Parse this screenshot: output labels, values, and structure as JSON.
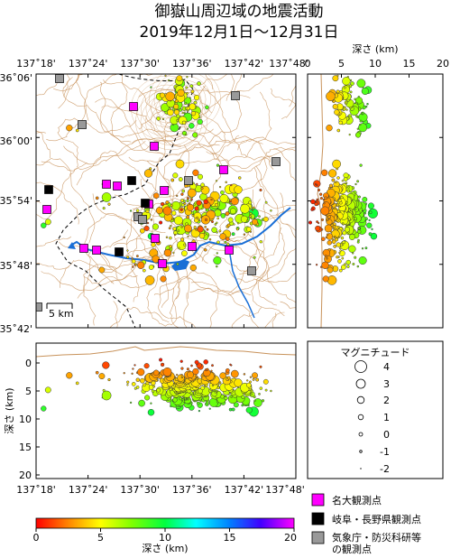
{
  "title": {
    "line1": "御嶽山周辺域の地震活動",
    "line2": "2019年12月1日～12月31日"
  },
  "map": {
    "lon_ticks": [
      "137˚18'",
      "137˚24'",
      "137˚30'",
      "137˚36'",
      "137˚42'",
      "137˚48'"
    ],
    "lat_ticks": [
      "36˚06'",
      "36˚00'",
      "35˚54'",
      "35˚48'",
      "35˚42'"
    ],
    "scale_label": "5 km"
  },
  "depth_section_right": {
    "title": "深さ (km)",
    "ticks": [
      "0",
      "5",
      "10",
      "15",
      "20"
    ]
  },
  "depth_section_bottom": {
    "ylabel": "深さ (km)",
    "y_ticks": [
      "0",
      "5",
      "10",
      "15",
      "20"
    ],
    "x_ticks": [
      "137˚18'",
      "137˚24'",
      "137˚30'",
      "137˚36'",
      "137˚42'",
      "137˚48'"
    ]
  },
  "magnitude_legend": {
    "title": "マグニチュード",
    "labels": [
      "4",
      "3",
      "2",
      "1",
      "0",
      "-1",
      "-2"
    ]
  },
  "colorbar": {
    "ticks": [
      "0",
      "5",
      "10",
      "15",
      "20"
    ],
    "label": "深さ (km)",
    "colors": [
      "#ff0000",
      "#ff8000",
      "#ffff00",
      "#80ff00",
      "#00ff40",
      "#00ffff",
      "#0080ff",
      "#4000ff",
      "#ff00ff"
    ]
  },
  "station_legend": {
    "nagoya": "名大観測点",
    "gifu_nagano": "岐阜・長野県観測点",
    "jma_nied_line1": "気象庁・防災科研等",
    "jma_nied_line2": "の観測点"
  },
  "station_colors": {
    "nagoya": "#ff00ff",
    "gifu_nagano": "#000000",
    "jma_nied": "#999999"
  }
}
